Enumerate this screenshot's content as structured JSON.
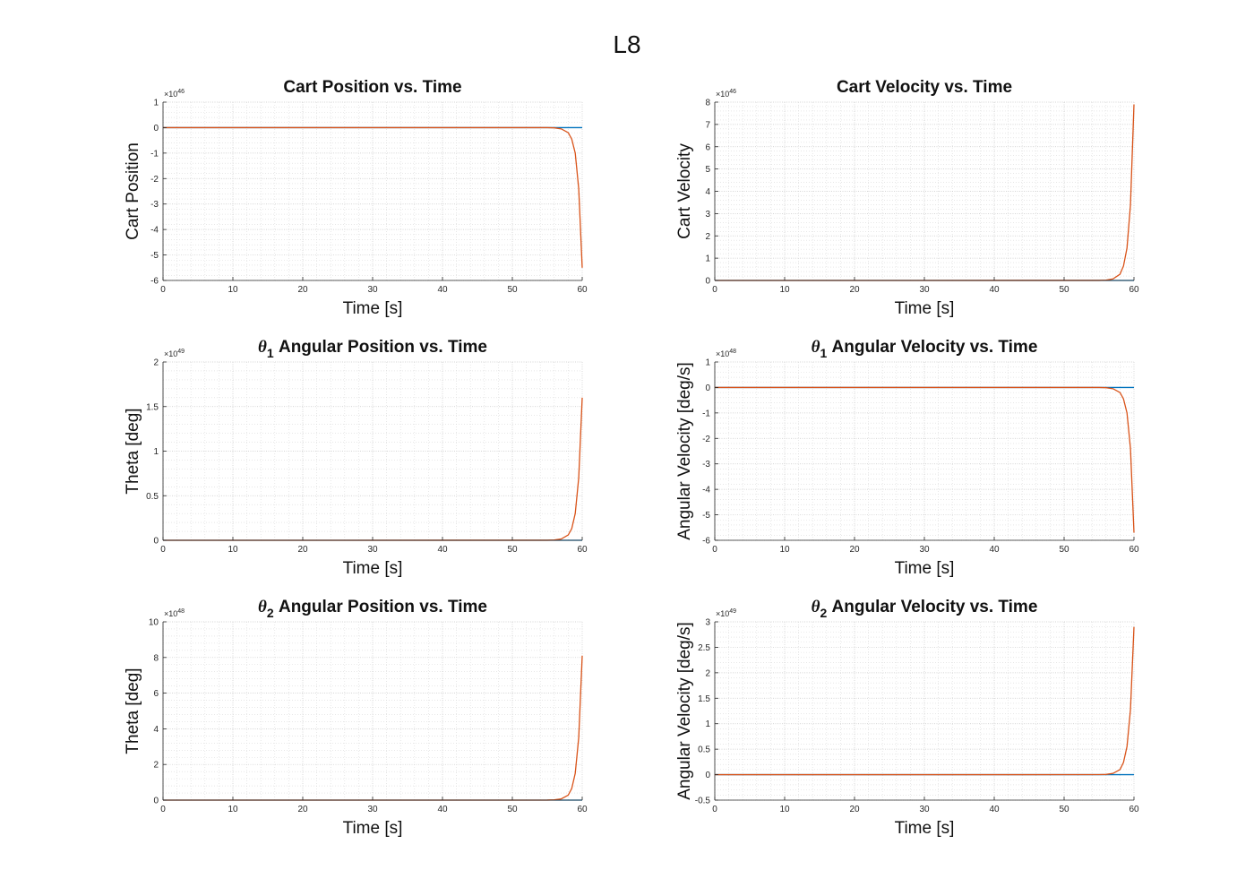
{
  "figure": {
    "title": "L8"
  },
  "colors": {
    "series1": "#0072BD",
    "series2": "#D95319",
    "axis": "#262626",
    "grid": "#c8c8c8"
  },
  "chart_data": [
    {
      "type": "line",
      "title": "Cart Position vs. Time",
      "xlabel": "Time [s]",
      "ylabel": "Cart Position",
      "exponent": "46",
      "xlim": [
        0,
        60
      ],
      "ylim": [
        -6,
        1
      ],
      "xticks": [
        "0",
        "10",
        "20",
        "30",
        "40",
        "50",
        "60"
      ],
      "yticks": [
        "1",
        "0",
        "-1",
        "-2",
        "-3",
        "-4",
        "-5",
        "-6"
      ],
      "grid": true,
      "minor_grid": true,
      "series": [
        {
          "x": [
            0,
            60
          ],
          "y": [
            0,
            0
          ]
        },
        {
          "x": [
            0,
            55,
            56,
            57,
            58,
            58.5,
            59,
            59.5,
            60
          ],
          "y": [
            0,
            -0.001,
            -0.01,
            -0.05,
            -0.2,
            -0.45,
            -1.0,
            -2.4,
            -5.5
          ]
        }
      ]
    },
    {
      "type": "line",
      "title": "Cart Velocity vs. Time",
      "xlabel": "Time [s]",
      "ylabel": "Cart Velocity",
      "exponent": "46",
      "xlim": [
        0,
        60
      ],
      "ylim": [
        0,
        8
      ],
      "xticks": [
        "0",
        "10",
        "20",
        "30",
        "40",
        "50",
        "60"
      ],
      "yticks": [
        "8",
        "7",
        "6",
        "5",
        "4",
        "3",
        "2",
        "1",
        "0"
      ],
      "grid": true,
      "minor_grid": true,
      "series": [
        {
          "x": [
            0,
            60
          ],
          "y": [
            0,
            0
          ]
        },
        {
          "x": [
            0,
            55,
            56,
            57,
            58,
            58.5,
            59,
            59.5,
            60
          ],
          "y": [
            0,
            0.002,
            0.015,
            0.07,
            0.28,
            0.65,
            1.45,
            3.4,
            7.9
          ]
        }
      ]
    },
    {
      "type": "line",
      "title_sym": "θ",
      "title_sub": "1",
      "title_rest": " Angular Position vs. Time",
      "xlabel": "Time [s]",
      "ylabel": "Theta [deg]",
      "exponent": "49",
      "xlim": [
        0,
        60
      ],
      "ylim": [
        0,
        2
      ],
      "xticks": [
        "0",
        "10",
        "20",
        "30",
        "40",
        "50",
        "60"
      ],
      "yticks": [
        "2",
        "1.5",
        "1",
        "0.5",
        "0"
      ],
      "grid": true,
      "minor_grid": true,
      "series": [
        {
          "x": [
            0,
            60
          ],
          "y": [
            0,
            0
          ]
        },
        {
          "x": [
            0,
            55,
            56,
            57,
            58,
            58.5,
            59,
            59.5,
            60
          ],
          "y": [
            0,
            0.0005,
            0.003,
            0.015,
            0.06,
            0.13,
            0.3,
            0.7,
            1.6
          ]
        }
      ]
    },
    {
      "type": "line",
      "title_sym": "θ",
      "title_sub": "1",
      "title_rest": " Angular Velocity vs. Time",
      "xlabel": "Time [s]",
      "ylabel": "Angular Velocity [deg/s]",
      "exponent": "48",
      "xlim": [
        0,
        60
      ],
      "ylim": [
        -6,
        1
      ],
      "xticks": [
        "0",
        "10",
        "20",
        "30",
        "40",
        "50",
        "60"
      ],
      "yticks": [
        "1",
        "0",
        "-1",
        "-2",
        "-3",
        "-4",
        "-5",
        "-6"
      ],
      "grid": true,
      "minor_grid": true,
      "series": [
        {
          "x": [
            0,
            60
          ],
          "y": [
            0,
            0
          ]
        },
        {
          "x": [
            0,
            55,
            56,
            57,
            58,
            58.5,
            59,
            59.5,
            60
          ],
          "y": [
            0,
            -0.001,
            -0.01,
            -0.05,
            -0.2,
            -0.45,
            -1.0,
            -2.4,
            -5.7
          ]
        }
      ]
    },
    {
      "type": "line",
      "title_sym": "θ",
      "title_sub": "2",
      "title_rest": " Angular Position vs. Time",
      "xlabel": "Time [s]",
      "ylabel": "Theta [deg]",
      "exponent": "48",
      "xlim": [
        0,
        60
      ],
      "ylim": [
        0,
        10
      ],
      "xticks": [
        "0",
        "10",
        "20",
        "30",
        "40",
        "50",
        "60"
      ],
      "yticks": [
        "10",
        "8",
        "6",
        "4",
        "2",
        "0"
      ],
      "grid": true,
      "minor_grid": true,
      "series": [
        {
          "x": [
            0,
            60
          ],
          "y": [
            0,
            0
          ]
        },
        {
          "x": [
            0,
            55,
            56,
            57,
            58,
            58.5,
            59,
            59.5,
            60
          ],
          "y": [
            0,
            0.002,
            0.015,
            0.07,
            0.28,
            0.65,
            1.5,
            3.5,
            8.1
          ]
        }
      ]
    },
    {
      "type": "line",
      "title_sym": "θ",
      "title_sub": "2",
      "title_rest": " Angular Velocity vs. Time",
      "xlabel": "Time [s]",
      "ylabel": "Angular Velocity [deg/s]",
      "exponent": "49",
      "xlim": [
        0,
        60
      ],
      "ylim": [
        -0.5,
        3
      ],
      "xticks": [
        "0",
        "10",
        "20",
        "30",
        "40",
        "50",
        "60"
      ],
      "yticks": [
        "3",
        "2.5",
        "2",
        "1.5",
        "1",
        "0.5",
        "0",
        "-0.5"
      ],
      "grid": true,
      "minor_grid": true,
      "series": [
        {
          "x": [
            0,
            60
          ],
          "y": [
            0,
            0
          ]
        },
        {
          "x": [
            0,
            55,
            56,
            57,
            58,
            58.5,
            59,
            59.5,
            60
          ],
          "y": [
            0,
            0.0008,
            0.005,
            0.025,
            0.1,
            0.24,
            0.55,
            1.28,
            2.9
          ]
        }
      ]
    }
  ]
}
